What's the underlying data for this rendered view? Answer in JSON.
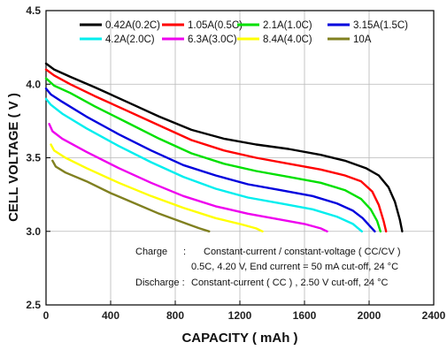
{
  "chart_data": {
    "type": "line",
    "title": "",
    "xlabel": "CAPACITY ( mAh )",
    "ylabel": "CELL VOLTAGE ( V )",
    "xlim": [
      0,
      2400
    ],
    "ylim": [
      2.5,
      4.5
    ],
    "xticks": [
      "0",
      "400",
      "800",
      "1200",
      "1600",
      "2000",
      "2400"
    ],
    "yticks": [
      "2.5",
      "3.0",
      "3.5",
      "4.0",
      "4.5"
    ],
    "grid": true,
    "legend_position": "top",
    "series": [
      {
        "name": "0.42A(0.2C)",
        "color": "#000000",
        "x": [
          0,
          50,
          150,
          300,
          500,
          700,
          900,
          1100,
          1300,
          1500,
          1700,
          1850,
          1980,
          2060,
          2120,
          2160,
          2190,
          2205
        ],
        "y": [
          4.14,
          4.1,
          4.05,
          3.98,
          3.88,
          3.78,
          3.69,
          3.63,
          3.59,
          3.56,
          3.52,
          3.48,
          3.43,
          3.38,
          3.3,
          3.2,
          3.08,
          3.0
        ]
      },
      {
        "name": "1.05A(0.5C)",
        "color": "#ff0000",
        "x": [
          0,
          50,
          150,
          300,
          500,
          700,
          900,
          1100,
          1300,
          1500,
          1700,
          1850,
          1950,
          2020,
          2060,
          2090,
          2105
        ],
        "y": [
          4.1,
          4.06,
          4.0,
          3.92,
          3.82,
          3.72,
          3.62,
          3.55,
          3.5,
          3.46,
          3.42,
          3.38,
          3.34,
          3.27,
          3.18,
          3.07,
          3.0
        ]
      },
      {
        "name": "2.1A(1.0C)",
        "color": "#00e000",
        "x": [
          0,
          50,
          150,
          300,
          500,
          700,
          900,
          1100,
          1300,
          1500,
          1700,
          1850,
          1950,
          2010,
          2050,
          2070
        ],
        "y": [
          4.04,
          3.99,
          3.94,
          3.85,
          3.74,
          3.63,
          3.53,
          3.46,
          3.41,
          3.37,
          3.33,
          3.28,
          3.22,
          3.15,
          3.07,
          3.0
        ]
      },
      {
        "name": "3.15A(1.5C)",
        "color": "#0000dd",
        "x": [
          0,
          30,
          100,
          250,
          450,
          650,
          850,
          1050,
          1250,
          1450,
          1650,
          1800,
          1900,
          1960,
          2010,
          2035
        ],
        "y": [
          3.97,
          3.93,
          3.88,
          3.78,
          3.66,
          3.55,
          3.45,
          3.38,
          3.32,
          3.28,
          3.24,
          3.19,
          3.14,
          3.09,
          3.03,
          3.0
        ]
      },
      {
        "name": "4.2A(2.0C)",
        "color": "#00eeee",
        "x": [
          0,
          30,
          100,
          250,
          450,
          650,
          850,
          1050,
          1250,
          1450,
          1650,
          1800,
          1900,
          1955
        ],
        "y": [
          3.9,
          3.86,
          3.8,
          3.7,
          3.58,
          3.47,
          3.37,
          3.29,
          3.23,
          3.19,
          3.15,
          3.1,
          3.05,
          3.0
        ]
      },
      {
        "name": "6.3A(3.0C)",
        "color": "#ee00ee",
        "x": [
          20,
          40,
          100,
          250,
          450,
          650,
          850,
          1050,
          1250,
          1450,
          1600,
          1700,
          1740
        ],
        "y": [
          3.73,
          3.68,
          3.63,
          3.54,
          3.43,
          3.33,
          3.24,
          3.17,
          3.12,
          3.08,
          3.05,
          3.02,
          3.0
        ]
      },
      {
        "name": "8.4A(4.0C)",
        "color": "#ffff00",
        "x": [
          30,
          50,
          120,
          250,
          450,
          650,
          850,
          1050,
          1200,
          1300,
          1340
        ],
        "y": [
          3.59,
          3.55,
          3.5,
          3.43,
          3.33,
          3.24,
          3.16,
          3.09,
          3.05,
          3.02,
          3.0
        ]
      },
      {
        "name": "10A",
        "color": "#808020",
        "x": [
          40,
          60,
          120,
          250,
          400,
          550,
          700,
          850,
          950,
          1010
        ],
        "y": [
          3.48,
          3.44,
          3.4,
          3.34,
          3.26,
          3.19,
          3.12,
          3.06,
          3.02,
          3.0
        ]
      }
    ],
    "annotations": {
      "charge_label": "Charge",
      "charge_colon": ":",
      "charge_line1": "Constant-current / constant-voltage ( CC/CV )",
      "charge_line2": "0.5C, 4.20 V, End current = 50 mA cut-off, 24 °C",
      "discharge_label": "Discharge :",
      "discharge_line": "Constant-current ( CC ) , 2.50 V cut-off, 24 °C"
    }
  }
}
